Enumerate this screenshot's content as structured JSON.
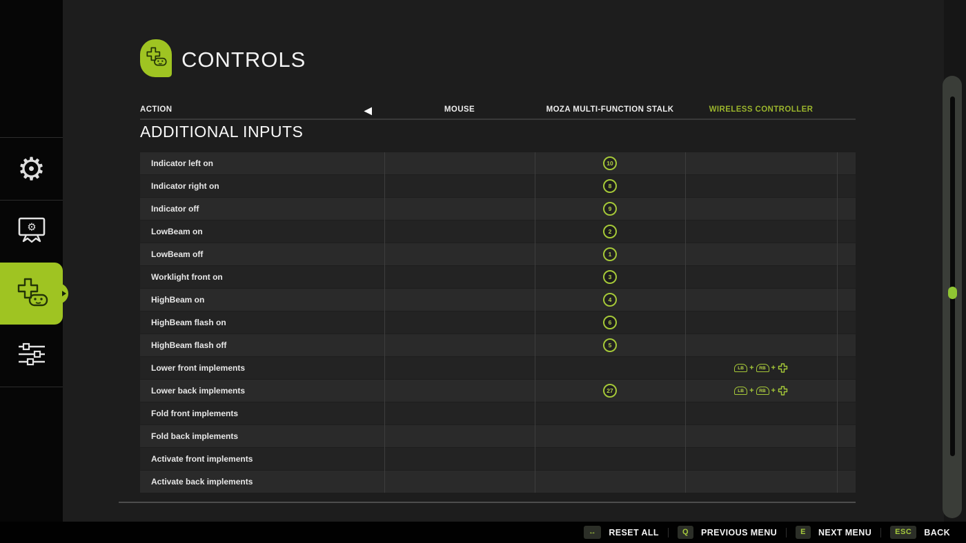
{
  "header": {
    "title": "CONTROLS"
  },
  "columns": {
    "action": "ACTION",
    "nav_arrow": "◀",
    "mouse": "MOUSE",
    "moza": "MOZA MULTI-FUNCTION STALK",
    "wireless": "WIRELESS CONTROLLER"
  },
  "section_title": "ADDITIONAL INPUTS",
  "combo_separator": "+",
  "rows": [
    {
      "action": "Indicator left on",
      "moza": "10",
      "wireless": null
    },
    {
      "action": "Indicator right on",
      "moza": "8",
      "wireless": null
    },
    {
      "action": "Indicator off",
      "moza": "9",
      "wireless": null
    },
    {
      "action": "LowBeam on",
      "moza": "2",
      "wireless": null
    },
    {
      "action": "LowBeam off",
      "moza": "1",
      "wireless": null
    },
    {
      "action": "Worklight front on",
      "moza": "3",
      "wireless": null
    },
    {
      "action": "HighBeam on",
      "moza": "4",
      "wireless": null
    },
    {
      "action": "HighBeam flash on",
      "moza": "6",
      "wireless": null
    },
    {
      "action": "HighBeam flash off",
      "moza": "5",
      "wireless": null
    },
    {
      "action": "Lower front implements",
      "moza": null,
      "wireless": {
        "buttons": [
          "LB",
          "RB"
        ],
        "dpad": "up"
      }
    },
    {
      "action": "Lower back implements",
      "moza": "27",
      "wireless": {
        "buttons": [
          "LB",
          "RB"
        ],
        "dpad": "down"
      }
    },
    {
      "action": "Fold front implements",
      "moza": null,
      "wireless": null
    },
    {
      "action": "Fold back implements",
      "moza": null,
      "wireless": null
    },
    {
      "action": "Activate front implements",
      "moza": null,
      "wireless": null
    },
    {
      "action": "Activate back implements",
      "moza": null,
      "wireless": null
    }
  ],
  "sidebar": {
    "items": [
      {
        "id": "general-settings",
        "icon": "gear-icon",
        "active": false
      },
      {
        "id": "display-settings",
        "icon": "monitor-gear-icon",
        "active": false
      },
      {
        "id": "controls",
        "icon": "gamepad-icon",
        "active": true
      },
      {
        "id": "advanced-settings",
        "icon": "sliders-icon",
        "active": false
      }
    ]
  },
  "footer": {
    "hints": [
      {
        "key": "↔",
        "label": "RESET ALL"
      },
      {
        "key": "Q",
        "label": "PREVIOUS MENU"
      },
      {
        "key": "E",
        "label": "NEXT MENU"
      },
      {
        "key": "ESC",
        "label": "BACK"
      }
    ]
  },
  "icons": {
    "gear_glyph": "⚙"
  },
  "colors": {
    "accent_green": "#9fc422",
    "badge_green": "#a6c938",
    "header_green": "#9ab42d",
    "scroll_knob_green": "#8fc533"
  },
  "scrollbar": {
    "thumb_position_pct": 48
  }
}
